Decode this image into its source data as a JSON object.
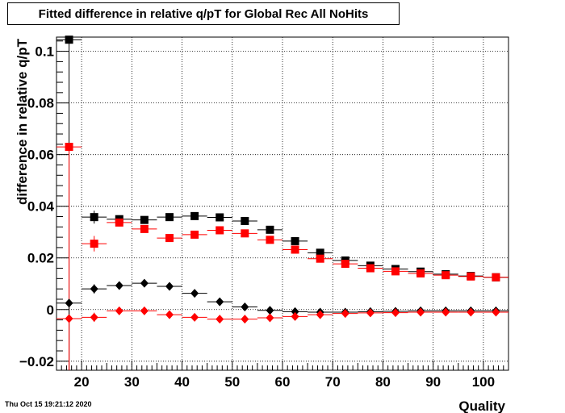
{
  "title": "Fitted difference in relative q/pT for Global Rec All NoHits",
  "footer": "Thu Oct 15 19:21:12 2020",
  "chart_data": {
    "type": "scatter",
    "xlabel": "Quality",
    "ylabel": "difference in relative q/pT",
    "xlim": [
      15,
      105
    ],
    "ylim": [
      -0.0235,
      0.1055
    ],
    "grid": true,
    "xticks": [
      20,
      30,
      40,
      50,
      60,
      70,
      80,
      90,
      100
    ],
    "yticks": [
      -0.02,
      0,
      0.02,
      0.04,
      0.06,
      0.08,
      0.1
    ],
    "ytick_labels": [
      "−0.02",
      "0",
      "0.02",
      "0.04",
      "0.06",
      "0.08",
      "0.1"
    ],
    "x_half_width": 2.5,
    "series": [
      {
        "marker": "square",
        "color": "#000000",
        "x": [
          17.5,
          22.5,
          27.5,
          32.5,
          37.5,
          42.5,
          47.5,
          52.5,
          57.5,
          62.5,
          67.5,
          72.5,
          77.5,
          82.5,
          87.5,
          92.5,
          97.5,
          102.5
        ],
        "y": [
          0.1045,
          0.0358,
          0.035,
          0.0347,
          0.0358,
          0.0362,
          0.0357,
          0.0343,
          0.0309,
          0.0265,
          0.022,
          0.019,
          0.017,
          0.0157,
          0.0147,
          0.0137,
          0.013,
          0.0125
        ],
        "yerr": [
          0.0,
          0.0025,
          0.0012,
          0.0008,
          0.0006,
          0.0006,
          0.0005,
          0.0005,
          0.0005,
          0.0004,
          0.0004,
          0.0004,
          0.0003,
          0.0003,
          0.0003,
          0.0003,
          0.0003,
          0.0003
        ]
      },
      {
        "marker": "square",
        "color": "#ff0000",
        "x": [
          17.5,
          22.5,
          27.5,
          32.5,
          37.5,
          42.5,
          47.5,
          52.5,
          57.5,
          62.5,
          67.5,
          72.5,
          77.5,
          82.5,
          87.5,
          92.5,
          97.5,
          102.5
        ],
        "y": [
          0.063,
          0.0255,
          0.0337,
          0.0312,
          0.0277,
          0.029,
          0.0307,
          0.0295,
          0.027,
          0.0232,
          0.0197,
          0.0177,
          0.016,
          0.0148,
          0.014,
          0.0133,
          0.0128,
          0.0125
        ],
        "yerr": [
          0.0,
          0.003,
          0.0015,
          0.001,
          0.0008,
          0.0007,
          0.0006,
          0.0006,
          0.0005,
          0.0005,
          0.0005,
          0.0004,
          0.0004,
          0.0004,
          0.0003,
          0.0003,
          0.0003,
          0.0003
        ]
      },
      {
        "marker": "diamond",
        "color": "#000000",
        "x": [
          17.5,
          22.5,
          27.5,
          32.5,
          37.5,
          42.5,
          47.5,
          52.5,
          57.5,
          62.5,
          67.5,
          72.5,
          77.5,
          82.5,
          87.5,
          92.5,
          97.5,
          102.5
        ],
        "y": [
          0.0025,
          0.008,
          0.0093,
          0.0102,
          0.009,
          0.0063,
          0.003,
          0.001,
          -0.0003,
          -0.0008,
          -0.001,
          -0.001,
          -0.0008,
          -0.0007,
          -0.0005,
          -0.0005,
          -0.0005,
          -0.0005
        ],
        "yerr": [
          0.0,
          0.0018,
          0.001,
          0.0008,
          0.0006,
          0.0005,
          0.0004,
          0.0004,
          0.0003,
          0.0003,
          0.0003,
          0.0002,
          0.0002,
          0.0002,
          0.0002,
          0.0002,
          0.0002,
          0.0002
        ]
      },
      {
        "marker": "diamond",
        "color": "#ff0000",
        "x": [
          17.5,
          22.5,
          27.5,
          32.5,
          37.5,
          42.5,
          47.5,
          52.5,
          57.5,
          62.5,
          67.5,
          72.5,
          77.5,
          82.5,
          87.5,
          92.5,
          97.5,
          102.5
        ],
        "y": [
          -0.0035,
          -0.003,
          -0.0005,
          -0.0005,
          -0.002,
          -0.003,
          -0.0037,
          -0.0037,
          -0.0032,
          -0.0027,
          -0.002,
          -0.0015,
          -0.0013,
          -0.0012,
          -0.001,
          -0.001,
          -0.001,
          -0.001
        ],
        "yerr": [
          0.0,
          0.0018,
          0.001,
          0.0008,
          0.0006,
          0.0005,
          0.0004,
          0.0004,
          0.0003,
          0.0003,
          0.0003,
          0.0002,
          0.0002,
          0.0002,
          0.0002,
          0.0002,
          0.0002,
          0.0002
        ]
      }
    ]
  }
}
